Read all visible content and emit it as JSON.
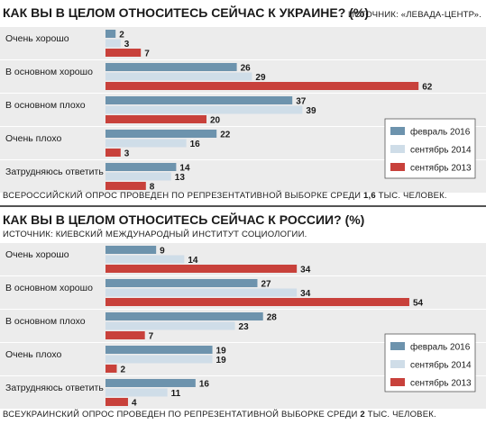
{
  "charts_meta": [
    {
      "title": "КАК ВЫ В ЦЕЛОМ ОТНОСИТЕСЬ СЕЙЧАС К УКРАИНЕ? (%)",
      "source": "ИСТОЧНИК: «ЛЕВАДА-ЦЕНТР».",
      "note_pre": "ВСЕРОССИЙСКИЙ ОПРОС ПРОВЕДЕН ПО РЕПРЕЗЕНТАТИВНОЙ ВЫБОРКЕ СРЕДИ ",
      "note_bold": "1,6",
      "note_post": " ТЫС. ЧЕЛОВЕК."
    },
    {
      "title": "КАК ВЫ В ЦЕЛОМ ОТНОСИТЕСЬ СЕЙЧАС К РОССИИ? (%)",
      "source": "ИСТОЧНИК: КИЕВСКИЙ МЕЖДУНАРОДНЫЙ ИНСТИТУТ СОЦИОЛОГИИ.",
      "note_pre": "ВСЕУКРАИНСКИЙ ОПРОС ПРОВЕДЕН ПО РЕПРЕЗЕНТАТИВНОЙ ВЫБОРКЕ СРЕДИ ",
      "note_bold": "2",
      "note_post": " ТЫС. ЧЕЛОВЕК."
    }
  ],
  "colors": {
    "feb2016": "#6d93ad",
    "sep2014": "#cfdde8",
    "sep2013": "#c8413b",
    "band": "#ececec"
  },
  "chart_data": [
    {
      "type": "bar",
      "orientation": "horizontal",
      "title": "КАК ВЫ В ЦЕЛОМ ОТНОСИТЕСЬ СЕЙЧАС К УКРАИНЕ? (%)",
      "categories": [
        "Очень хорошо",
        "В основном хорошо",
        "В основном плохо",
        "Очень плохо",
        "Затрудняюсь ответить"
      ],
      "series": [
        {
          "name": "февраль 2016",
          "values": [
            2,
            26,
            37,
            22,
            14
          ]
        },
        {
          "name": "сентябрь 2014",
          "values": [
            3,
            29,
            39,
            16,
            13
          ]
        },
        {
          "name": "сентябрь 2013",
          "values": [
            7,
            62,
            20,
            3,
            8
          ]
        }
      ],
      "xlim": [
        0,
        62
      ],
      "legend": "bottom-right",
      "grid": false
    },
    {
      "type": "bar",
      "orientation": "horizontal",
      "title": "КАК ВЫ В ЦЕЛОМ ОТНОСИТЕСЬ СЕЙЧАС К РОССИИ? (%)",
      "categories": [
        "Очень хорошо",
        "В основном хорошо",
        "В основном плохо",
        "Очень плохо",
        "Затрудняюсь ответить"
      ],
      "series": [
        {
          "name": "февраль 2016",
          "values": [
            9,
            27,
            28,
            19,
            16
          ]
        },
        {
          "name": "сентябрь 2014",
          "values": [
            14,
            34,
            23,
            19,
            11
          ]
        },
        {
          "name": "сентябрь 2013",
          "values": [
            34,
            54,
            7,
            2,
            4
          ]
        }
      ],
      "xlim": [
        0,
        54
      ],
      "legend": "bottom-right",
      "grid": false
    }
  ]
}
